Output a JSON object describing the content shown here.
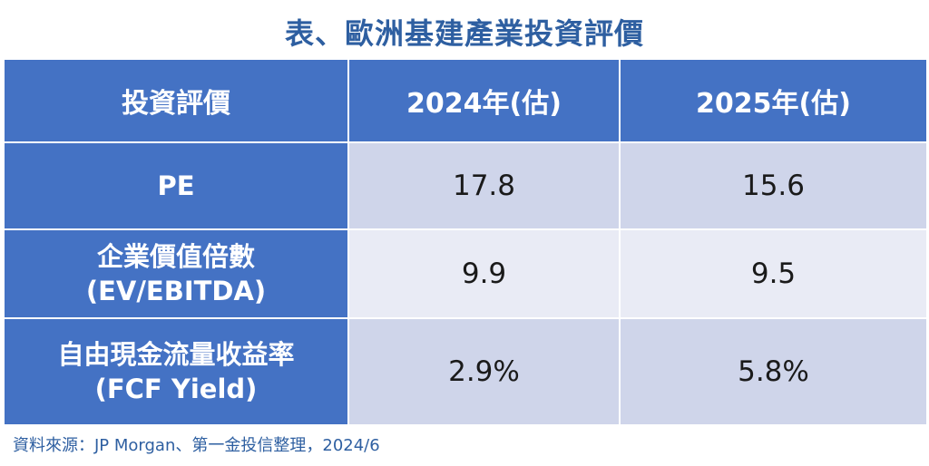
{
  "title": "表、歐洲基建產業投資評價",
  "table": {
    "headers": [
      "投資評價",
      "2024年(估)",
      "2025年(估)"
    ],
    "rows": [
      {
        "label_line1": "PE",
        "label_line2": "",
        "v2024": "17.8",
        "v2025": "15.6"
      },
      {
        "label_line1": "企業價值倍數",
        "label_line2": "(EV/EBITDA)",
        "v2024": "9.9",
        "v2025": "9.5"
      },
      {
        "label_line1": "自由現金流量收益率",
        "label_line2": "(FCF Yield)",
        "v2024": "2.9%",
        "v2025": "5.8%"
      }
    ]
  },
  "source": "資料來源：JP Morgan、第一金投信整理，2024/6",
  "colors": {
    "title": "#2e5fa1",
    "header_bg": "#4472c4",
    "row_dark": "#cfd5ea",
    "row_light": "#e9ebf5"
  }
}
